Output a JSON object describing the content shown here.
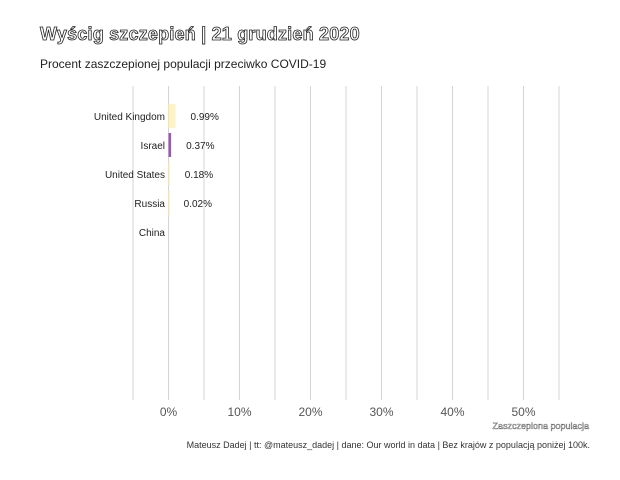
{
  "title": "Wyścig szczepień | 21 grudzień 2020",
  "subtitle": "Procent zaszczepionej populacji przeciwko COVID-19",
  "footer": "Mateusz Dadej | tt: @mateusz_dadej | dane: Our world in data | Bez krajów z populacją poniżej 100k.",
  "chart_data": {
    "type": "bar",
    "orientation": "horizontal",
    "title": "Wyścig szczepień | 21 grudzień 2020",
    "subtitle": "Procent zaszczepionej populacji przeciwko COVID-19",
    "xlabel": "Zaszczepiona populacja",
    "ylabel": "",
    "xlim": [
      -0.05,
      0.55
    ],
    "x_ticks": [
      0,
      0.1,
      0.2,
      0.3,
      0.4,
      0.5
    ],
    "x_tick_labels": [
      "0%",
      "10%",
      "20%",
      "30%",
      "40%",
      "50%"
    ],
    "categories": [
      "United Kingdom",
      "Israel",
      "United States",
      "Russia",
      "China"
    ],
    "values": [
      0.0099,
      0.0037,
      0.0018,
      0.0002,
      0.0
    ],
    "value_labels": [
      "0.99%",
      "0.37%",
      "0.18%",
      "0.02%",
      ""
    ],
    "colors": [
      "#fdf3c4",
      "#9b59b6",
      "#fdf3c4",
      "#fdf3c4",
      "#fdf3c4"
    ],
    "grid": "vertical",
    "legend": "none"
  }
}
